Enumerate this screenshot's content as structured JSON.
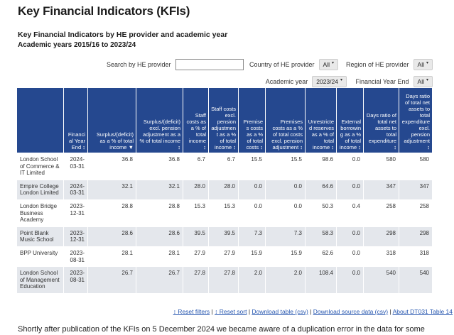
{
  "theme": {
    "header_bg": "#25488f",
    "row_alt": "#e4e7ec",
    "link": "#2757b0"
  },
  "page": {
    "title": "Key Financial Indicators (KFIs)",
    "subtitle": "Key Financial Indicators by HE provider and academic year",
    "subtitle2": "Academic years 2015/16 to 2023/24",
    "note": "Shortly after publication of the KFIs on 5 December 2024 we became aware of a duplication error in the data for some non-"
  },
  "filters": {
    "search_label": "Search by HE provider",
    "search_value": "",
    "country_label": "Country of HE provider",
    "country_value": "All",
    "region_label": "Region of HE provider",
    "region_value": "All",
    "year_label": "Academic year",
    "year_value": "2023/24",
    "finyear_label": "Financial Year End",
    "finyear_value": "All",
    "caret": "▾"
  },
  "table": {
    "sort_icons": {
      "updown": "↕",
      "desc": "▼"
    },
    "columns": [
      {
        "label": "",
        "sort": ""
      },
      {
        "label": "Financial Year End",
        "sort": "updown"
      },
      {
        "label": "Surplus/(deficit) as a % of total income",
        "sort": "desc"
      },
      {
        "label": "Surplus/(deficit) excl. pension adjustment as a % of total income",
        "sort": "updown"
      },
      {
        "label": "Staff costs as a % of total income",
        "sort": "updown"
      },
      {
        "label": "Staff costs excl. pension adjustment as a % of total income",
        "sort": "updown"
      },
      {
        "label": "Premises costs as a % of total costs",
        "sort": "updown"
      },
      {
        "label": "Premises costs as a % of total costs excl. pension adjustment",
        "sort": "updown"
      },
      {
        "label": "Unrestricted reserves as a % of total income",
        "sort": "updown"
      },
      {
        "label": "External borrowing as a % of total income",
        "sort": "updown"
      },
      {
        "label": "Days ratio of total net assets to total expenditure",
        "sort": "updown"
      },
      {
        "label": "Days ratio of total net assets to total expenditure excl. pension adjustment",
        "sort": "updown"
      }
    ],
    "rows": [
      {
        "provider": "London School of Commerce & IT Limited",
        "values": [
          "2024-03-31",
          "36.8",
          "36.8",
          "6.7",
          "6.7",
          "15.5",
          "15.5",
          "98.6",
          "0.0",
          "580",
          "580"
        ]
      },
      {
        "provider": "Empire College London Limited",
        "values": [
          "2024-03-31",
          "32.1",
          "32.1",
          "28.0",
          "28.0",
          "0.0",
          "0.0",
          "64.6",
          "0.0",
          "347",
          "347"
        ]
      },
      {
        "provider": "London Bridge Business Academy",
        "values": [
          "2023-12-31",
          "28.8",
          "28.8",
          "15.3",
          "15.3",
          "0.0",
          "0.0",
          "50.3",
          "0.4",
          "258",
          "258"
        ]
      },
      {
        "provider": "Point Blank Music School",
        "values": [
          "2023-12-31",
          "28.6",
          "28.6",
          "39.5",
          "39.5",
          "7.3",
          "7.3",
          "58.3",
          "0.0",
          "298",
          "298"
        ]
      },
      {
        "provider": "BPP University",
        "values": [
          "2023-08-31",
          "28.1",
          "28.1",
          "27.9",
          "27.9",
          "15.9",
          "15.9",
          "62.6",
          "0.0",
          "318",
          "318"
        ]
      },
      {
        "provider": "London School of Management Education",
        "values": [
          "2023-08-31",
          "26.7",
          "26.7",
          "27.8",
          "27.8",
          "2.0",
          "2.0",
          "108.4",
          "0.0",
          "540",
          "540"
        ]
      }
    ]
  },
  "footer": {
    "separator": "|",
    "links": [
      {
        "name": "reset-filters-link",
        "label": "↕ Reset filters"
      },
      {
        "name": "reset-sort-link",
        "label": "↕ Reset sort"
      },
      {
        "name": "download-table-link",
        "label": "Download table (csv)"
      },
      {
        "name": "download-source-data-link",
        "label": "Download source data (csv)"
      },
      {
        "name": "about-table-link",
        "label": "About DT031 Table 14"
      }
    ]
  }
}
